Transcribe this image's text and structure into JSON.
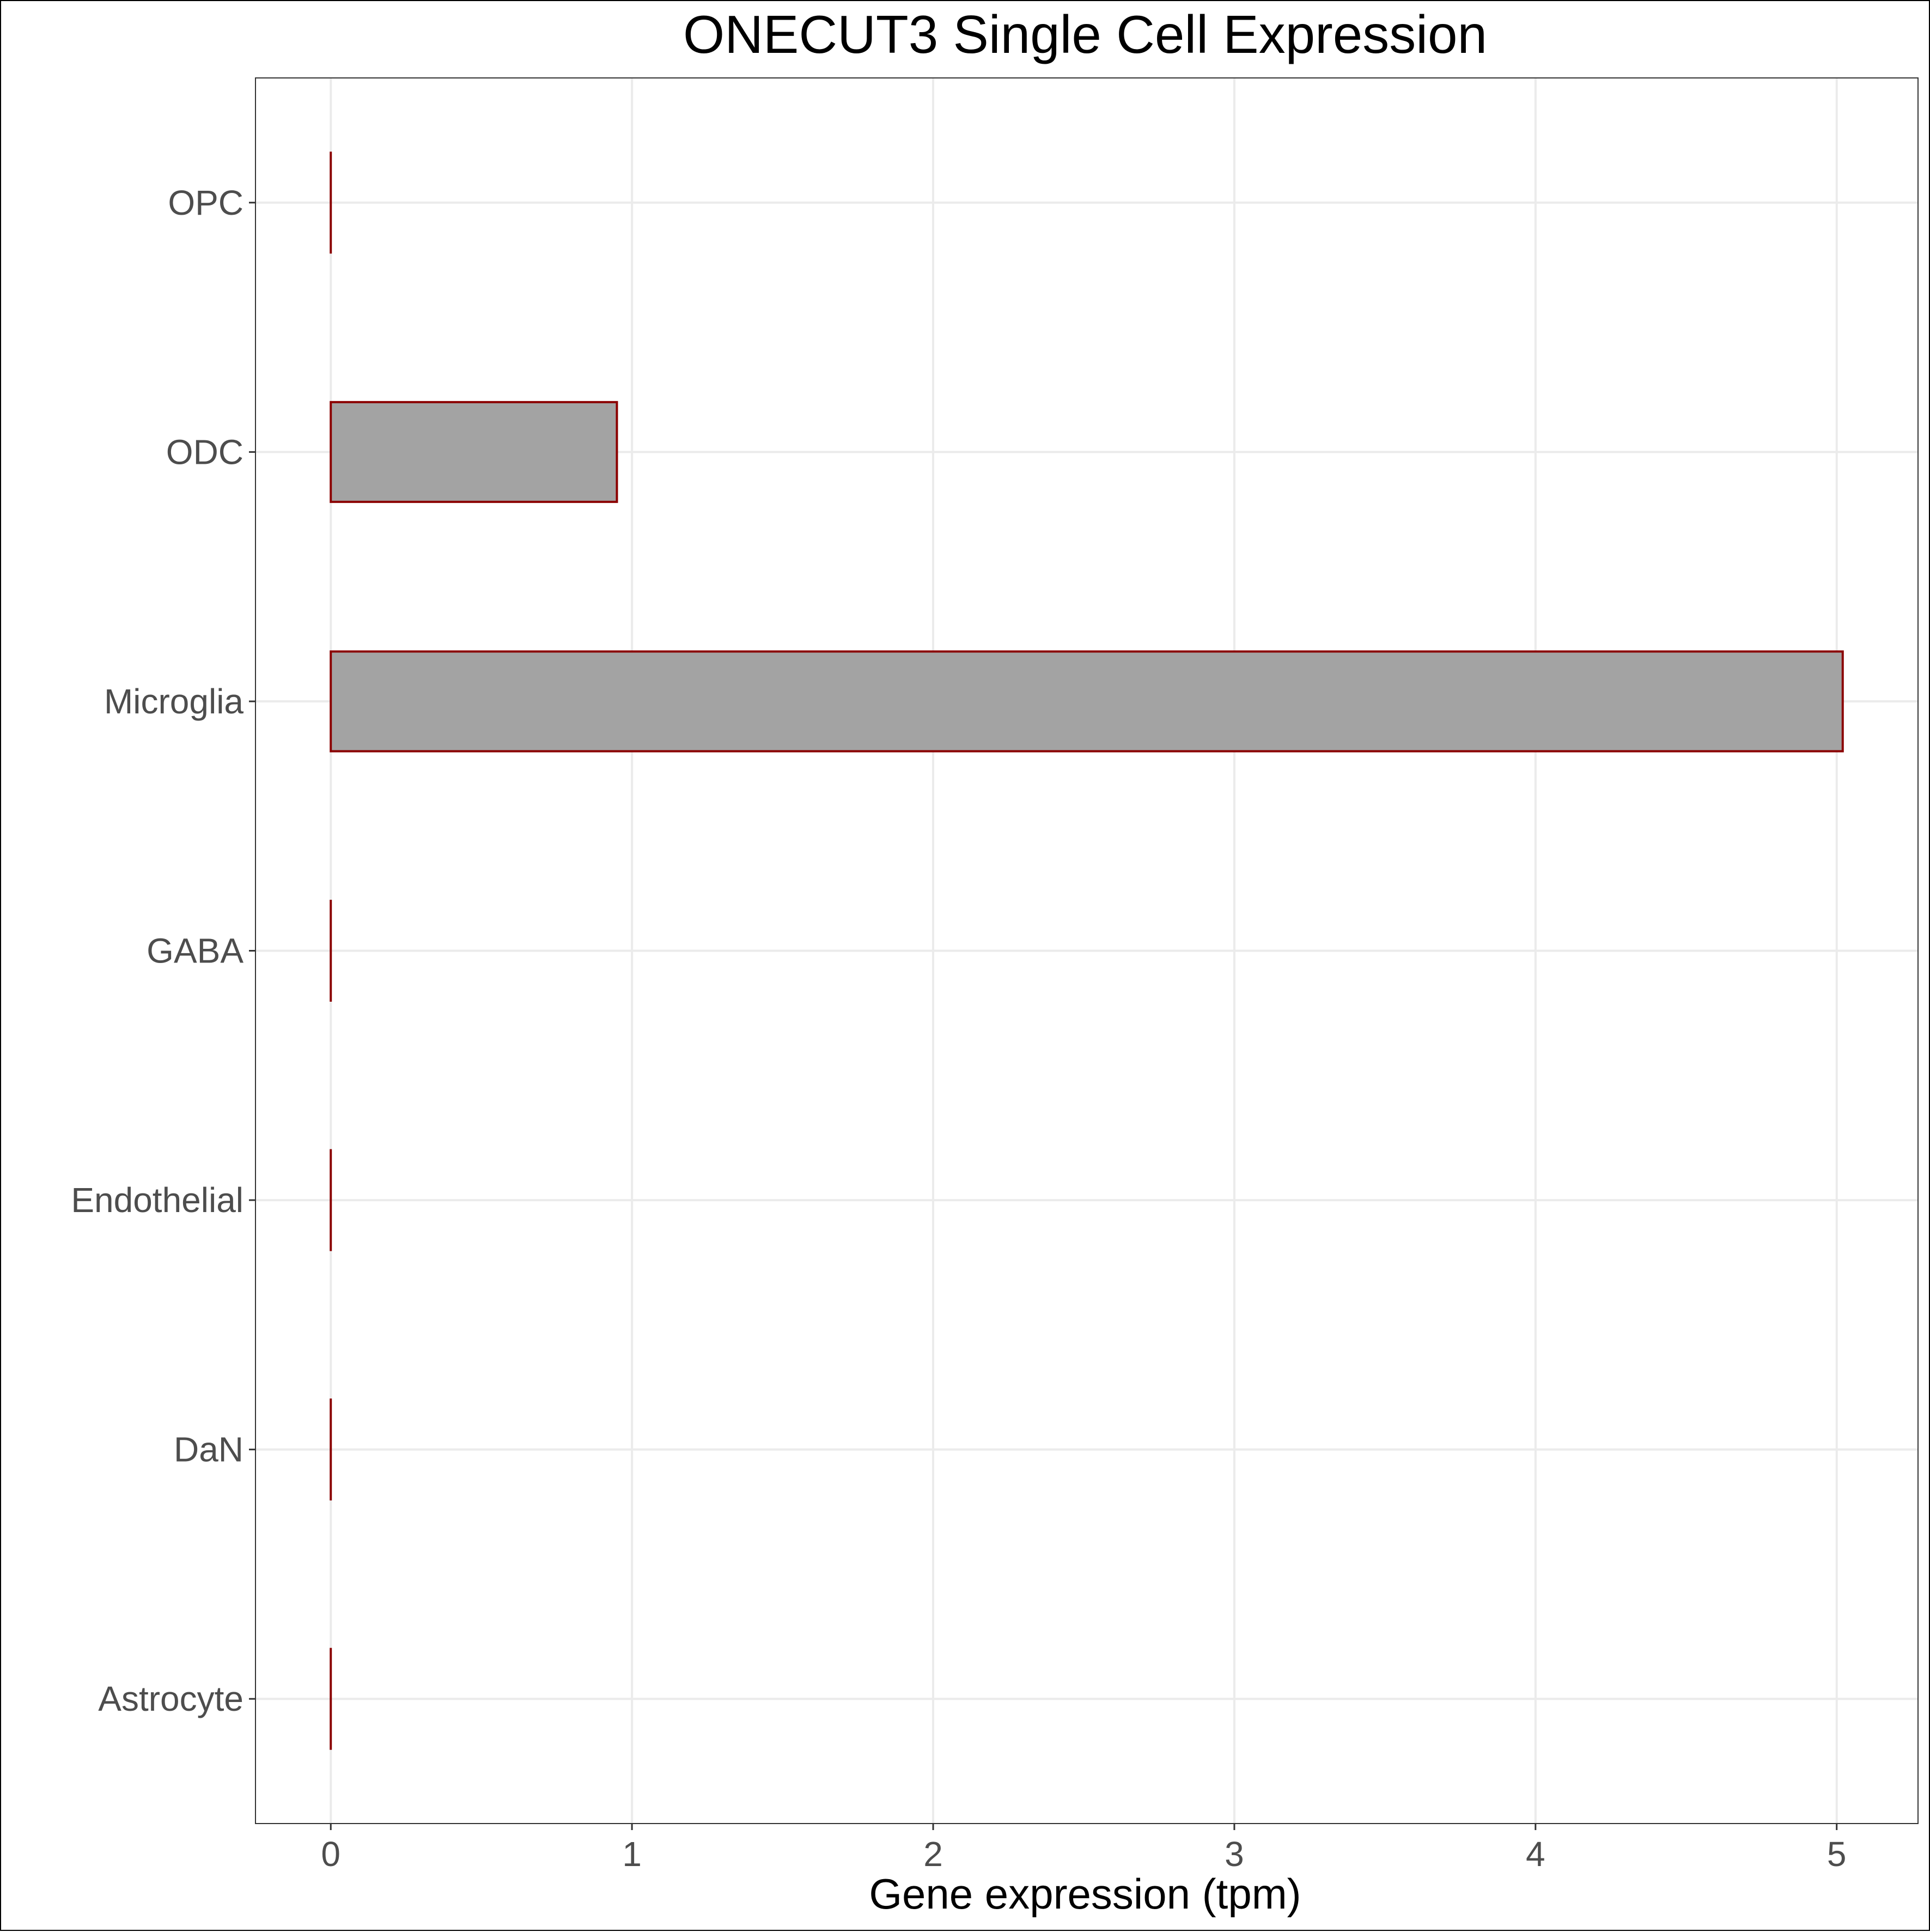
{
  "chart_data": {
    "type": "bar",
    "orientation": "horizontal",
    "title": "ONECUT3 Single Cell Expression",
    "xlabel": "Gene expression (tpm)",
    "ylabel": "",
    "categories": [
      "Astrocyte",
      "DaN",
      "Endothelial",
      "GABA",
      "Microglia",
      "ODC",
      "OPC"
    ],
    "values": [
      0,
      0,
      0,
      0,
      5.02,
      0.95,
      0
    ],
    "xlim": [
      -0.25,
      5.27
    ],
    "xticks": [
      0,
      1,
      2,
      3,
      4,
      5
    ],
    "grid": true,
    "colors": {
      "bar_fill": "#a3a3a3",
      "bar_outline": "#8b0000",
      "grid": "#ebebeb",
      "panel_border": "#333333"
    }
  }
}
